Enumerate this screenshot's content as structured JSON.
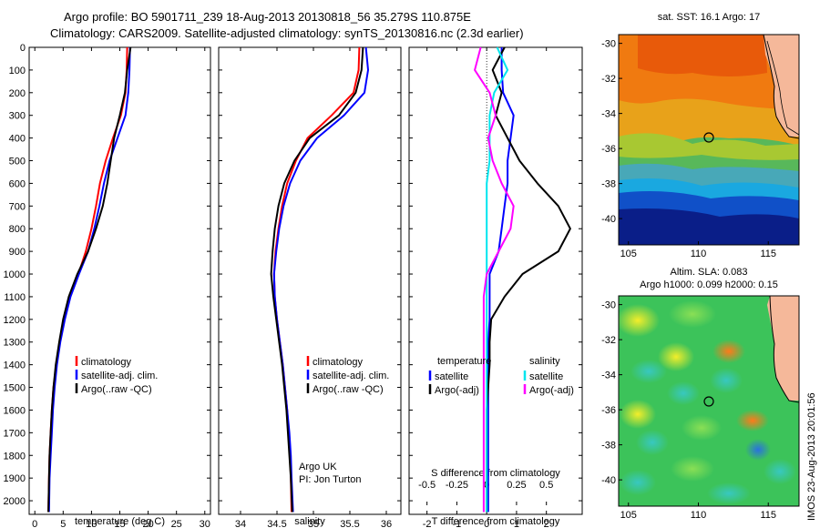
{
  "header": {
    "line1": "Argo profile: BO 5901711_239 18-Aug-2013 20130818_56 35.279S 110.875E",
    "line2": "Climatology: CARS2009. Satellite-adjusted climatology: synTS_20130816.nc (2.3d earlier)"
  },
  "side_stamp": "IMOS 23-Aug-2013 20:01:56",
  "colors": {
    "climatology": "#ff0000",
    "satellite": "#0000ff",
    "argo": "#000000",
    "s_satellite": "#00e5ee",
    "s_argo": "#ff00ff"
  },
  "chart_data": [
    {
      "id": "temperature",
      "type": "line",
      "xlabel": "temperature (deg C)",
      "xlim": [
        -1,
        31
      ],
      "xticks": [
        0,
        5,
        10,
        15,
        20,
        25,
        30
      ],
      "ylim": [
        2060,
        0
      ],
      "yticks": [
        0,
        100,
        200,
        300,
        400,
        500,
        600,
        700,
        800,
        900,
        1000,
        1100,
        1200,
        1300,
        1400,
        1500,
        1600,
        1700,
        1800,
        1900,
        2000
      ],
      "legend": [
        "climatology",
        "satellite-adj. clim.",
        "Argo(..raw -QC)"
      ],
      "legend_position": "lower-right",
      "series": [
        {
          "name": "climatology",
          "color": "#ff0000",
          "x": [
            16.3,
            16.2,
            16.0,
            15.2,
            13.8,
            12.5,
            11.5,
            10.8,
            10.0,
            9.0,
            7.7,
            6.2,
            5.2,
            4.4,
            3.8,
            3.3,
            3.0,
            2.8,
            2.6,
            2.5,
            2.4
          ],
          "y": [
            0,
            100,
            200,
            300,
            400,
            500,
            600,
            700,
            800,
            900,
            1000,
            1100,
            1200,
            1300,
            1400,
            1500,
            1600,
            1700,
            1800,
            1900,
            2050
          ]
        },
        {
          "name": "satellite-adj. clim.",
          "color": "#0000ff",
          "x": [
            16.8,
            16.7,
            16.5,
            16.0,
            14.6,
            13.2,
            12.2,
            11.4,
            10.5,
            9.4,
            7.8,
            6.3,
            5.3,
            4.5,
            3.9,
            3.5,
            3.2,
            3.0,
            2.8,
            2.6,
            2.5
          ],
          "y": [
            0,
            100,
            200,
            300,
            400,
            500,
            600,
            700,
            800,
            900,
            1000,
            1100,
            1200,
            1300,
            1400,
            1500,
            1600,
            1700,
            1800,
            1900,
            2050
          ]
        },
        {
          "name": "Argo(..raw -QC)",
          "color": "#000000",
          "x": [
            16.9,
            16.3,
            15.9,
            15.0,
            14.0,
            13.4,
            12.8,
            12.0,
            10.8,
            9.4,
            7.5,
            6.0,
            5.0,
            4.3,
            3.7,
            3.3,
            3.0,
            2.8,
            2.6,
            2.5,
            2.4
          ],
          "y": [
            0,
            100,
            200,
            300,
            400,
            500,
            600,
            700,
            800,
            900,
            1000,
            1100,
            1200,
            1300,
            1400,
            1500,
            1600,
            1700,
            1800,
            1900,
            2050
          ]
        }
      ]
    },
    {
      "id": "salinity",
      "type": "line",
      "xlabel": "salinity",
      "xlim": [
        33.7,
        36.2
      ],
      "xticks": [
        34,
        34.5,
        35,
        35.5,
        36
      ],
      "ylim": [
        2060,
        0
      ],
      "legend": [
        "climatology",
        "satellite-adj. clim.",
        "Argo(..raw -QC)"
      ],
      "legend_position": "lower-right",
      "annotation": [
        "Argo UK",
        "PI: Jon Turton"
      ],
      "series": [
        {
          "name": "climatology",
          "color": "#ff0000",
          "x": [
            35.63,
            35.62,
            35.55,
            35.25,
            34.92,
            34.76,
            34.64,
            34.57,
            34.52,
            34.48,
            34.46,
            34.47,
            34.5,
            34.54,
            34.58,
            34.61,
            34.64,
            34.66,
            34.68,
            34.69,
            34.7
          ],
          "y": [
            0,
            100,
            200,
            300,
            400,
            500,
            600,
            700,
            800,
            900,
            1000,
            1100,
            1200,
            1300,
            1400,
            1500,
            1600,
            1700,
            1800,
            1900,
            2050
          ]
        },
        {
          "name": "satellite-adj. clim.",
          "color": "#0000ff",
          "x": [
            35.72,
            35.75,
            35.7,
            35.42,
            35.05,
            34.82,
            34.68,
            34.59,
            34.53,
            34.49,
            34.46,
            34.47,
            34.5,
            34.54,
            34.58,
            34.61,
            34.64,
            34.67,
            34.69,
            34.7,
            34.72
          ],
          "y": [
            0,
            100,
            200,
            300,
            400,
            500,
            600,
            700,
            800,
            900,
            1000,
            1100,
            1200,
            1300,
            1400,
            1500,
            1600,
            1700,
            1800,
            1900,
            2050
          ]
        },
        {
          "name": "Argo(..raw -QC)",
          "color": "#000000",
          "x": [
            35.68,
            35.66,
            35.58,
            35.35,
            34.95,
            34.74,
            34.6,
            34.52,
            34.47,
            34.44,
            34.42,
            34.45,
            34.49,
            34.53,
            34.57,
            34.6,
            34.63,
            34.65,
            34.67,
            34.69,
            34.71
          ],
          "y": [
            0,
            100,
            200,
            300,
            400,
            500,
            600,
            700,
            800,
            900,
            1000,
            1100,
            1200,
            1300,
            1400,
            1500,
            1600,
            1700,
            1800,
            1900,
            2050
          ]
        }
      ]
    },
    {
      "id": "difference",
      "type": "line",
      "xlabel_top": "S difference from climatology",
      "xlabel": "T difference from climatology",
      "s_ticks": [
        -0.5,
        -0.25,
        0,
        0.25,
        0.5
      ],
      "xlim": [
        -2.6,
        3.2
      ],
      "xticks": [
        -2,
        -1,
        0,
        1,
        2
      ],
      "ylim": [
        2060,
        0
      ],
      "legend_headers": [
        "temperature",
        "salinity"
      ],
      "legend_t": [
        "satellite",
        "Argo(-adj)"
      ],
      "legend_s": [
        "satellite",
        "Argo(-adj)"
      ],
      "series": [
        {
          "name": "temperature satellite",
          "color": "#0000ff",
          "x": [
            0.5,
            0.5,
            0.55,
            0.9,
            0.8,
            0.7,
            0.7,
            0.6,
            0.5,
            0.4,
            0.1,
            0.1,
            0.1,
            0.05,
            0.05,
            0.05,
            0.05,
            0.05,
            0.05,
            0.05,
            0.05
          ],
          "y": [
            0,
            100,
            200,
            300,
            400,
            500,
            600,
            700,
            800,
            900,
            1000,
            1100,
            1200,
            1300,
            1400,
            1500,
            1600,
            1700,
            1800,
            1900,
            2050
          ]
        },
        {
          "name": "temperature Argo(-adj)",
          "color": "#000000",
          "x": [
            0.6,
            0.2,
            0.5,
            0.3,
            0.7,
            1.1,
            1.7,
            2.4,
            2.8,
            2.4,
            1.2,
            0.6,
            0.15,
            0.1,
            0.1,
            0.05,
            0.0,
            0.0,
            0.0,
            0.0,
            0.0
          ],
          "y": [
            0,
            100,
            200,
            300,
            400,
            500,
            600,
            700,
            800,
            900,
            1000,
            1100,
            1200,
            1300,
            1400,
            1500,
            1600,
            1700,
            1800,
            1900,
            2050
          ]
        },
        {
          "name": "salinity satellite",
          "color": "#00e5ee",
          "x": [
            0.35,
            0.7,
            0.25,
            0.1,
            0.1,
            0.1,
            0.0,
            0.0,
            0.0,
            0.0,
            0.0,
            0.0,
            0.0,
            0.0,
            0.0,
            0.0,
            0.0,
            0.0,
            0.0,
            0.0,
            0.0
          ],
          "y": [
            0,
            100,
            200,
            300,
            400,
            500,
            600,
            700,
            800,
            900,
            1000,
            1100,
            1200,
            1300,
            1400,
            1500,
            1600,
            1700,
            1800,
            1900,
            2050
          ]
        },
        {
          "name": "salinity Argo(-adj)",
          "color": "#ff00ff",
          "x": [
            -0.2,
            -0.4,
            0.1,
            0.3,
            0.05,
            0.2,
            0.5,
            0.9,
            0.8,
            0.4,
            0.0,
            -0.1,
            -0.1,
            -0.1,
            -0.1,
            -0.1,
            -0.1,
            -0.1,
            -0.1,
            -0.1,
            -0.1
          ],
          "y": [
            0,
            100,
            200,
            300,
            400,
            500,
            600,
            700,
            800,
            900,
            1000,
            1100,
            1200,
            1300,
            1400,
            1500,
            1600,
            1700,
            1800,
            1900,
            2050
          ]
        }
      ]
    },
    {
      "id": "sst_map",
      "type": "heatmap",
      "title": "sat. SST: 16.1 Argo: 17",
      "xticks": [
        105,
        110,
        115
      ],
      "yticks": [
        -30,
        -32,
        -34,
        -36,
        -38,
        -40
      ],
      "xlim": [
        104.3,
        117.2
      ],
      "ylim": [
        -41.5,
        -29.5
      ],
      "marker": {
        "lon": 110.875,
        "lat": -35.279
      }
    },
    {
      "id": "sla_map",
      "type": "heatmap",
      "title": "Altim. SLA: 0.083",
      "subtitle": "Argo h1000: 0.099 h2000: 0.15",
      "xticks": [
        105,
        110,
        115
      ],
      "yticks": [
        -30,
        -32,
        -34,
        -36,
        -38,
        -40
      ],
      "xlim": [
        104.3,
        117.2
      ],
      "ylim": [
        -41.5,
        -29.5
      ],
      "marker": {
        "lon": 110.875,
        "lat": -35.279
      }
    }
  ]
}
